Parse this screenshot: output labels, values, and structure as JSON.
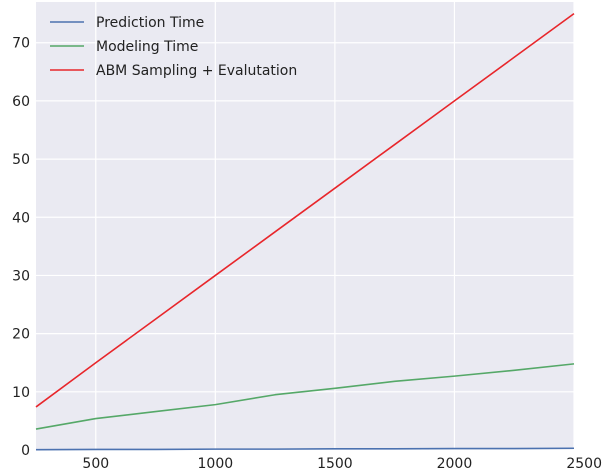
{
  "chart_data": {
    "type": "line",
    "title": "",
    "xlabel": "",
    "ylabel": "",
    "xlim": [
      250,
      2500
    ],
    "ylim": [
      0,
      77
    ],
    "x_ticks": [
      500,
      1000,
      1500,
      2000,
      2500
    ],
    "y_ticks": [
      0,
      10,
      20,
      30,
      40,
      50,
      60,
      70
    ],
    "grid": true,
    "legend_position": "top-left",
    "series": [
      {
        "name": "Prediction Time",
        "color": "#4c72b0",
        "x": [
          250,
          500,
          750,
          1000,
          1250,
          1500,
          1750,
          2000,
          2250,
          2500
        ],
        "y": [
          0.05,
          0.1,
          0.1,
          0.15,
          0.15,
          0.2,
          0.2,
          0.25,
          0.25,
          0.3
        ]
      },
      {
        "name": "Modeling Time",
        "color": "#55a868",
        "x": [
          250,
          500,
          750,
          1000,
          1250,
          1500,
          1750,
          2000,
          2250,
          2500
        ],
        "y": [
          3.6,
          5.4,
          6.6,
          7.8,
          9.5,
          10.6,
          11.8,
          12.7,
          13.7,
          14.8
        ]
      },
      {
        "name": "ABM Sampling + Evalutation",
        "color": "#e8262b",
        "x": [
          250,
          500,
          750,
          1000,
          1250,
          1500,
          1750,
          2000,
          2250,
          2500
        ],
        "y": [
          7.4,
          15.0,
          22.5,
          30.0,
          37.5,
          45.0,
          52.5,
          60.0,
          67.5,
          75.0
        ]
      }
    ]
  }
}
